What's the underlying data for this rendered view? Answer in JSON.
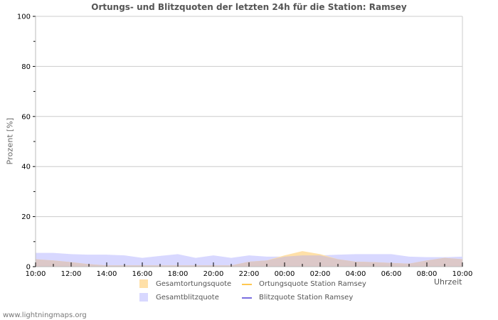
{
  "chart_data": {
    "type": "area",
    "title": "Ortungs- und Blitzquoten der letzten 24h für die Station: Ramsey",
    "xlabel": "Uhrzeit",
    "ylabel": "Prozent   [%]",
    "ylim": [
      0,
      100
    ],
    "yticks": [
      0,
      20,
      40,
      60,
      80,
      100
    ],
    "grid": true,
    "legend_position": "bottom",
    "x": [
      "10:00",
      "11:00",
      "12:00",
      "13:00",
      "14:00",
      "15:00",
      "16:00",
      "17:00",
      "18:00",
      "19:00",
      "20:00",
      "21:00",
      "22:00",
      "23:00",
      "00:00",
      "01:00",
      "02:00",
      "03:00",
      "04:00",
      "05:00",
      "06:00",
      "07:00",
      "08:00",
      "09:00",
      "10:00"
    ],
    "xtick_labels": [
      "10:00",
      "12:00",
      "14:00",
      "16:00",
      "18:00",
      "20:00",
      "22:00",
      "00:00",
      "02:00",
      "04:00",
      "06:00",
      "08:00",
      "10:00"
    ],
    "series": [
      {
        "name": "Gesamtortungsquote",
        "kind": "area",
        "color": "#ffe0a8",
        "values": [
          3.0,
          2.5,
          1.8,
          1.0,
          0.5,
          0.5,
          0.5,
          0.5,
          0.5,
          0.5,
          0.5,
          0.5,
          2.0,
          2.5,
          4.5,
          6.2,
          5.0,
          3.0,
          2.0,
          1.8,
          1.5,
          1.2,
          2.5,
          3.5,
          3.0
        ]
      },
      {
        "name": "Gesamtblitzquote",
        "kind": "area",
        "color": "#d8d8ff",
        "values": [
          5.5,
          5.5,
          5.0,
          4.8,
          4.8,
          4.5,
          3.5,
          4.3,
          5.0,
          3.5,
          4.5,
          3.5,
          4.5,
          4.0,
          4.0,
          4.5,
          4.5,
          4.8,
          5.0,
          5.0,
          5.0,
          4.0,
          3.8,
          3.8,
          4.0
        ]
      },
      {
        "name": "Ortungsquote Station Ramsey",
        "kind": "line",
        "color": "#ffc850",
        "values": []
      },
      {
        "name": "Blitzquote Station Ramsey",
        "kind": "line",
        "color": "#7a6ee0",
        "values": []
      }
    ]
  },
  "legend": {
    "items": [
      {
        "label": "Gesamtortungsquote"
      },
      {
        "label": "Ortungsquote Station Ramsey"
      },
      {
        "label": "Gesamtblitzquote"
      },
      {
        "label": "Blitzquote Station Ramsey"
      }
    ]
  },
  "footer": {
    "text": "www.lightningmaps.org"
  },
  "colors": {
    "ortung_fill": "#ffe0a8",
    "blitz_fill": "#d8d8ff",
    "overlap_fill": "#dcc8c8",
    "grid": "#cccccc"
  }
}
